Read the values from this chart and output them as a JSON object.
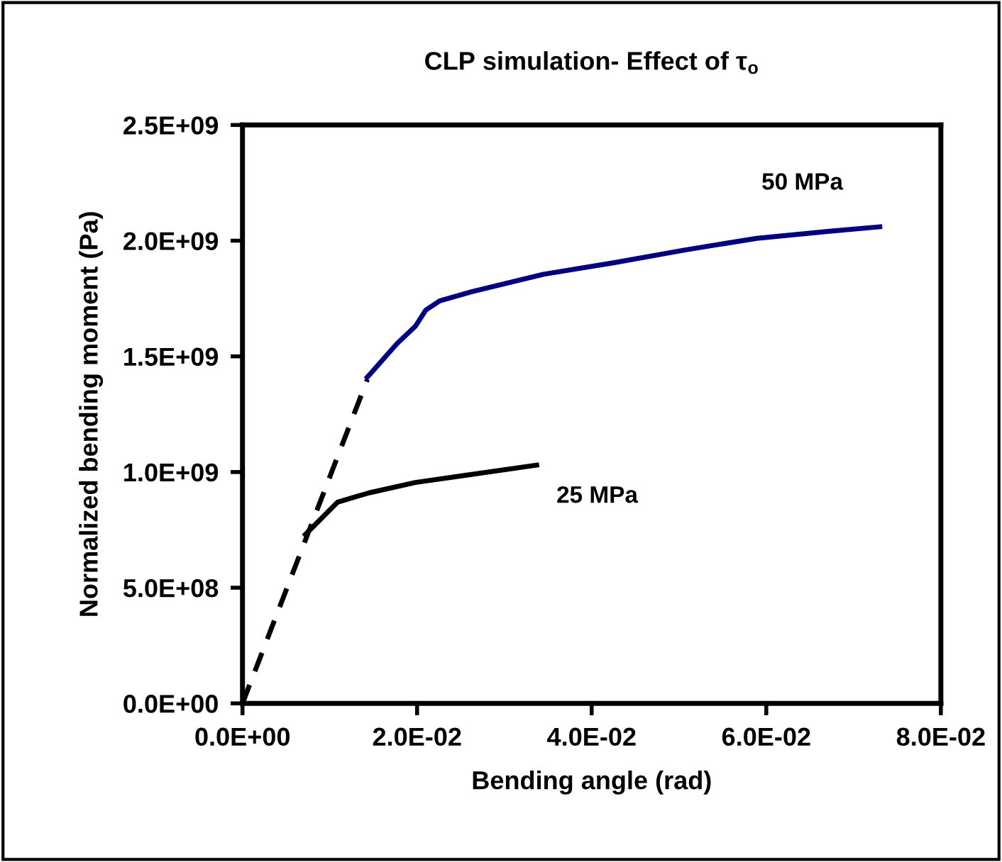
{
  "chart_data": {
    "type": "line",
    "title": "CLP simulation- Effect of τ$_{o}$",
    "xlabel": "Bending angle (rad)",
    "ylabel": "Normalized bending moment (Pa)",
    "xlim": [
      0,
      0.08
    ],
    "xticks": [
      {
        "value": 0,
        "label": "0.0E+00"
      },
      {
        "value": 0.02,
        "label": "2.0E-02"
      },
      {
        "value": 0.04,
        "label": "4.0E-02"
      },
      {
        "value": 0.06,
        "label": "6.0E-02"
      },
      {
        "value": 0.08,
        "label": "8.0E-02"
      }
    ],
    "ylim": [
      0,
      2500000000
    ],
    "yticks": [
      {
        "value": 0,
        "label": "0.0E+00"
      },
      {
        "value": 500000000,
        "label": "5.0E+08"
      },
      {
        "value": 1000000000,
        "label": "1.0E+09"
      },
      {
        "value": 1500000000,
        "label": "1.5E+09"
      },
      {
        "value": 2000000000,
        "label": "2.0E+09"
      },
      {
        "value": 2500000000,
        "label": "2.5E+09"
      }
    ],
    "grid": false,
    "legend": false,
    "series": [
      {
        "color": "#000000",
        "line_style": "dashed",
        "x": [
          0,
          0.0143
        ],
        "values": [
          0,
          1400000000
        ]
      },
      {
        "name": "25 MPa",
        "color": "#000000",
        "line_style": "solid",
        "x": [
          0.0072,
          0.0109,
          0.0145,
          0.0198,
          0.0254,
          0.0337
        ],
        "values": [
          730000000,
          870000000,
          910000000,
          955000000,
          985000000,
          1030000000
        ]
      },
      {
        "name": "50 MPa",
        "color": "#000080",
        "line_style": "solid",
        "x": [
          0.0143,
          0.0177,
          0.0198,
          0.021,
          0.0226,
          0.0263,
          0.0345,
          0.0426,
          0.0507,
          0.0589,
          0.067,
          0.073
        ],
        "values": [
          1410000000,
          1555000000,
          1630000000,
          1700000000,
          1740000000,
          1780000000,
          1855000000,
          1905000000,
          1960000000,
          2010000000,
          2040000000,
          2060000000
        ]
      }
    ]
  }
}
